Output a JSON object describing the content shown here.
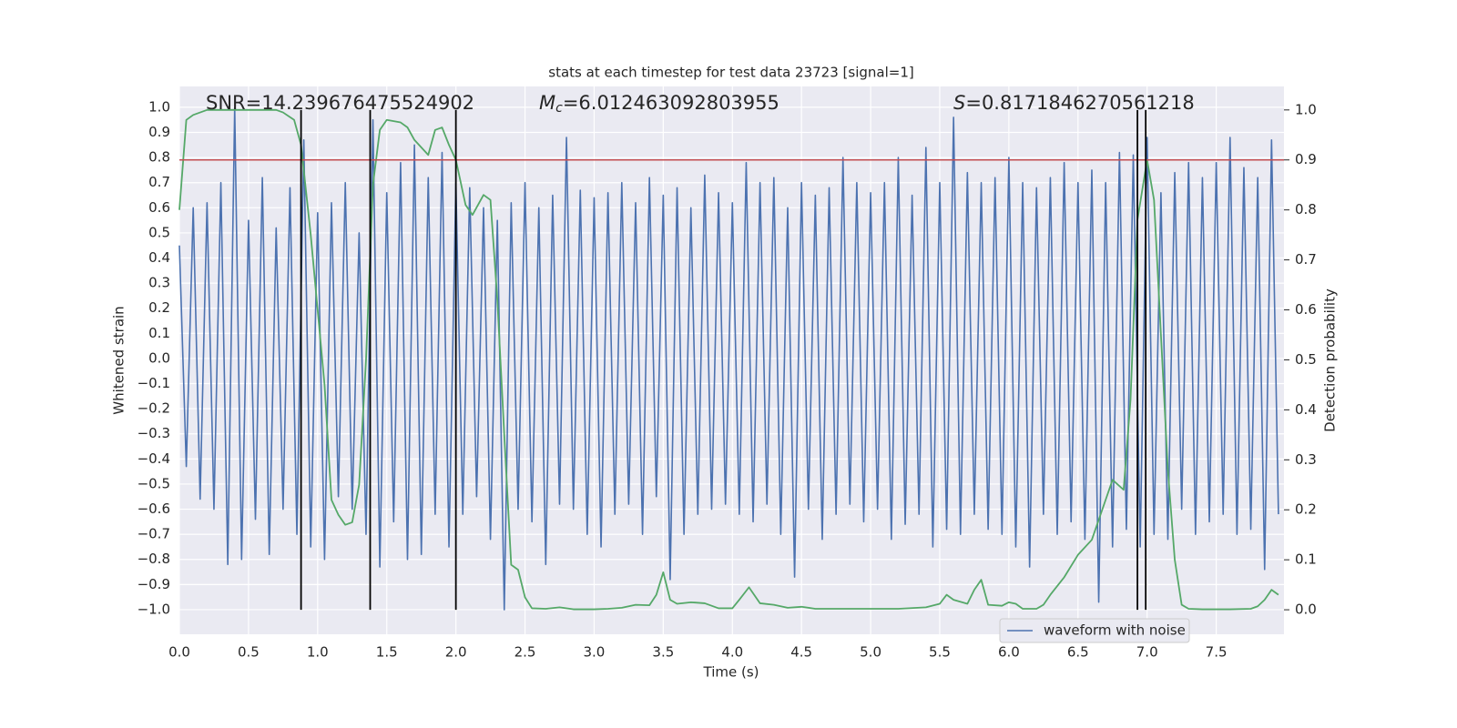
{
  "chart_data": {
    "type": "line",
    "title": "stats at each timestep for test data 23723 [signal=1]",
    "xlabel": "Time (s)",
    "ylabel": "Whitened strain",
    "y2label": "Detection probability",
    "xlim": [
      0,
      7.99
    ],
    "ylim": [
      -1.098,
      1.083
    ],
    "y2lim": [
      -0.049,
      1.047
    ],
    "xticks": [
      {
        "value": 0,
        "label": "0.0"
      },
      {
        "value": 0.5,
        "label": "0.5"
      },
      {
        "value": 1,
        "label": "1.0"
      },
      {
        "value": 1.5,
        "label": "1.5"
      },
      {
        "value": 2,
        "label": "2.0"
      },
      {
        "value": 2.5,
        "label": "2.5"
      },
      {
        "value": 3,
        "label": "3.0"
      },
      {
        "value": 3.5,
        "label": "3.5"
      },
      {
        "value": 4,
        "label": "4.0"
      },
      {
        "value": 4.5,
        "label": "4.5"
      },
      {
        "value": 5,
        "label": "5.0"
      },
      {
        "value": 5.5,
        "label": "5.5"
      },
      {
        "value": 6,
        "label": "6.0"
      },
      {
        "value": 6.5,
        "label": "6.5"
      },
      {
        "value": 7,
        "label": "7.0"
      },
      {
        "value": 7.5,
        "label": "7.5"
      }
    ],
    "yticks": [
      {
        "value": -1,
        "label": "−1.0"
      },
      {
        "value": -0.9,
        "label": "−0.9"
      },
      {
        "value": -0.8,
        "label": "−0.8"
      },
      {
        "value": -0.7,
        "label": "−0.7"
      },
      {
        "value": -0.6,
        "label": "−0.6"
      },
      {
        "value": -0.5,
        "label": "−0.5"
      },
      {
        "value": -0.4,
        "label": "−0.4"
      },
      {
        "value": -0.3,
        "label": "−0.3"
      },
      {
        "value": -0.2,
        "label": "−0.2"
      },
      {
        "value": -0.1,
        "label": "−0.1"
      },
      {
        "value": 0,
        "label": "0.0"
      },
      {
        "value": 0.1,
        "label": "0.1"
      },
      {
        "value": 0.2,
        "label": "0.2"
      },
      {
        "value": 0.3,
        "label": "0.3"
      },
      {
        "value": 0.4,
        "label": "0.4"
      },
      {
        "value": 0.5,
        "label": "0.5"
      },
      {
        "value": 0.6,
        "label": "0.6"
      },
      {
        "value": 0.7,
        "label": "0.7"
      },
      {
        "value": 0.8,
        "label": "0.8"
      },
      {
        "value": 0.9,
        "label": "0.9"
      },
      {
        "value": 1,
        "label": "1.0"
      }
    ],
    "y2ticks": [
      {
        "value": 0,
        "label": "0.0"
      },
      {
        "value": 0.1,
        "label": "0.1"
      },
      {
        "value": 0.2,
        "label": "0.2"
      },
      {
        "value": 0.3,
        "label": "0.3"
      },
      {
        "value": 0.4,
        "label": "0.4"
      },
      {
        "value": 0.5,
        "label": "0.5"
      },
      {
        "value": 0.6,
        "label": "0.6"
      },
      {
        "value": 0.7,
        "label": "0.7"
      },
      {
        "value": 0.8,
        "label": "0.8"
      },
      {
        "value": 0.9,
        "label": "0.9"
      },
      {
        "value": 1,
        "label": "1.0"
      }
    ],
    "grid": true,
    "legend": "lower right",
    "series": [
      {
        "name": "waveform with noise",
        "color": "#4c72b0",
        "x": [
          0,
          0.05,
          0.1,
          0.15,
          0.2,
          0.25,
          0.3,
          0.35,
          0.4,
          0.45,
          0.5,
          0.55,
          0.6,
          0.65,
          0.7,
          0.75,
          0.8,
          0.85,
          0.9,
          0.95,
          1,
          1.05,
          1.1,
          1.15,
          1.2,
          1.25,
          1.3,
          1.35,
          1.4,
          1.45,
          1.5,
          1.55,
          1.6,
          1.65,
          1.7,
          1.75,
          1.8,
          1.85,
          1.9,
          1.95,
          2,
          2.05,
          2.1,
          2.15,
          2.2,
          2.25,
          2.3,
          2.35,
          2.4,
          2.45,
          2.5,
          2.55,
          2.6,
          2.65,
          2.7,
          2.75,
          2.8,
          2.85,
          2.9,
          2.95,
          3,
          3.05,
          3.1,
          3.15,
          3.2,
          3.25,
          3.3,
          3.35,
          3.4,
          3.45,
          3.5,
          3.55,
          3.6,
          3.65,
          3.7,
          3.75,
          3.8,
          3.85,
          3.9,
          3.95,
          4,
          4.05,
          4.1,
          4.15,
          4.2,
          4.25,
          4.3,
          4.35,
          4.4,
          4.45,
          4.5,
          4.55,
          4.6,
          4.65,
          4.7,
          4.75,
          4.8,
          4.85,
          4.9,
          4.95,
          5,
          5.05,
          5.1,
          5.15,
          5.2,
          5.25,
          5.3,
          5.35,
          5.4,
          5.45,
          5.5,
          5.55,
          5.6,
          5.65,
          5.7,
          5.75,
          5.8,
          5.85,
          5.9,
          5.95,
          6,
          6.05,
          6.1,
          6.15,
          6.2,
          6.25,
          6.3,
          6.35,
          6.4,
          6.45,
          6.5,
          6.55,
          6.6,
          6.65,
          6.7,
          6.75,
          6.8,
          6.85,
          6.9,
          6.95,
          7,
          7.05,
          7.1,
          7.15,
          7.2,
          7.25,
          7.3,
          7.35,
          7.4,
          7.45,
          7.5,
          7.55,
          7.6,
          7.65,
          7.7,
          7.75,
          7.8,
          7.85,
          7.9,
          7.95
        ],
        "values": [
          0.45,
          -0.43,
          0.6,
          -0.56,
          0.62,
          -0.6,
          0.7,
          -0.82,
          1.0,
          -0.8,
          0.55,
          -0.64,
          0.72,
          -0.78,
          0.52,
          -0.6,
          0.68,
          -0.7,
          0.87,
          -0.75,
          0.58,
          -0.8,
          0.62,
          -0.55,
          0.7,
          -0.6,
          0.5,
          -0.7,
          0.95,
          -0.83,
          0.66,
          -0.65,
          0.78,
          -0.8,
          0.85,
          -0.78,
          0.72,
          -0.62,
          0.82,
          -0.75,
          0.7,
          -0.62,
          0.68,
          -0.55,
          0.6,
          -0.72,
          0.55,
          -1.0,
          0.62,
          -0.6,
          0.7,
          -0.65,
          0.6,
          -0.82,
          0.65,
          -0.58,
          0.88,
          -0.6,
          0.67,
          -0.7,
          0.64,
          -0.75,
          0.66,
          -0.62,
          0.7,
          -0.58,
          0.62,
          -0.7,
          0.72,
          -0.55,
          0.65,
          -0.88,
          0.68,
          -0.7,
          0.6,
          -0.62,
          0.73,
          -0.6,
          0.66,
          -0.58,
          0.62,
          -0.62,
          0.78,
          -0.65,
          0.7,
          -0.58,
          0.72,
          -0.7,
          0.6,
          -0.87,
          0.7,
          -0.6,
          0.65,
          -0.72,
          0.68,
          -0.62,
          0.8,
          -0.58,
          0.7,
          -0.65,
          0.66,
          -0.6,
          0.7,
          -0.72,
          0.8,
          -0.66,
          0.65,
          -0.62,
          0.84,
          -0.75,
          0.7,
          -0.68,
          0.96,
          -0.7,
          0.74,
          -0.62,
          0.7,
          -0.68,
          0.72,
          -0.7,
          0.8,
          -0.75,
          0.7,
          -0.83,
          0.68,
          -0.62,
          0.72,
          -0.7,
          0.78,
          -0.65,
          0.7,
          -0.72,
          0.75,
          -0.97,
          0.7,
          -0.75,
          0.82,
          -0.68,
          0.81,
          -0.75,
          0.88,
          -0.7,
          0.66,
          -0.72,
          0.74,
          -0.6,
          0.78,
          -0.7,
          0.72,
          -0.65,
          0.78,
          -0.62,
          0.88,
          -0.7,
          0.76,
          -0.68,
          0.72,
          -0.84,
          0.87,
          -0.62
        ]
      },
      {
        "color": "#55a868",
        "axis": "y2",
        "x": [
          0,
          0.05,
          0.1,
          0.2,
          0.7,
          0.75,
          0.83,
          0.88,
          0.95,
          1,
          1.05,
          1.1,
          1.15,
          1.2,
          1.25,
          1.3,
          1.35,
          1.4,
          1.45,
          1.5,
          1.6,
          1.65,
          1.7,
          1.8,
          1.85,
          1.9,
          1.95,
          2,
          2.07,
          2.12,
          2.2,
          2.25,
          2.3,
          2.35,
          2.4,
          2.45,
          2.5,
          2.55,
          2.65,
          2.75,
          2.85,
          3,
          3.1,
          3.2,
          3.3,
          3.4,
          3.45,
          3.5,
          3.55,
          3.6,
          3.7,
          3.8,
          3.9,
          4,
          4.05,
          4.12,
          4.2,
          4.3,
          4.4,
          4.5,
          4.6,
          4.8,
          5,
          5.2,
          5.4,
          5.5,
          5.55,
          5.6,
          5.7,
          5.75,
          5.8,
          5.85,
          5.95,
          6,
          6.05,
          6.1,
          6.2,
          6.25,
          6.3,
          6.4,
          6.5,
          6.6,
          6.7,
          6.75,
          6.83,
          6.88,
          6.93,
          7,
          7.05,
          7.1,
          7.15,
          7.2,
          7.25,
          7.3,
          7.4,
          7.6,
          7.75,
          7.8,
          7.85,
          7.9,
          7.95
        ],
        "values": [
          0.8,
          0.98,
          0.99,
          1.0,
          1.0,
          0.995,
          0.98,
          0.93,
          0.75,
          0.6,
          0.45,
          0.22,
          0.19,
          0.17,
          0.175,
          0.25,
          0.5,
          0.85,
          0.96,
          0.98,
          0.975,
          0.965,
          0.94,
          0.91,
          0.96,
          0.965,
          0.93,
          0.9,
          0.81,
          0.79,
          0.83,
          0.82,
          0.62,
          0.35,
          0.09,
          0.08,
          0.025,
          0.003,
          0.002,
          0.005,
          0.001,
          0.001,
          0.002,
          0.004,
          0.01,
          0.009,
          0.03,
          0.075,
          0.02,
          0.012,
          0.015,
          0.013,
          0.003,
          0.003,
          0.02,
          0.045,
          0.013,
          0.01,
          0.004,
          0.006,
          0.002,
          0.002,
          0.002,
          0.002,
          0.005,
          0.012,
          0.03,
          0.02,
          0.012,
          0.04,
          0.06,
          0.01,
          0.008,
          0.015,
          0.012,
          0.002,
          0.002,
          0.01,
          0.03,
          0.065,
          0.11,
          0.14,
          0.22,
          0.26,
          0.24,
          0.42,
          0.78,
          0.9,
          0.82,
          0.55,
          0.28,
          0.1,
          0.01,
          0.002,
          0.001,
          0.001,
          0.002,
          0.007,
          0.02,
          0.04,
          0.03
        ]
      }
    ],
    "threshold": {
      "value": 0.9,
      "axis": "y2",
      "color": "#c44e52"
    },
    "vlines": {
      "x": [
        0.88,
        1.38,
        2.0,
        6.93,
        6.99
      ],
      "range": [
        0,
        1
      ],
      "axis": "y2",
      "color": "#000000"
    },
    "annotations": [
      {
        "text": "SNR=14.239676475524902"
      },
      {
        "symbol": "M",
        "subscript": "c",
        "text": "=6.012463092803955"
      },
      {
        "symbol": "S",
        "text": "=0.8171846270561218"
      }
    ]
  }
}
